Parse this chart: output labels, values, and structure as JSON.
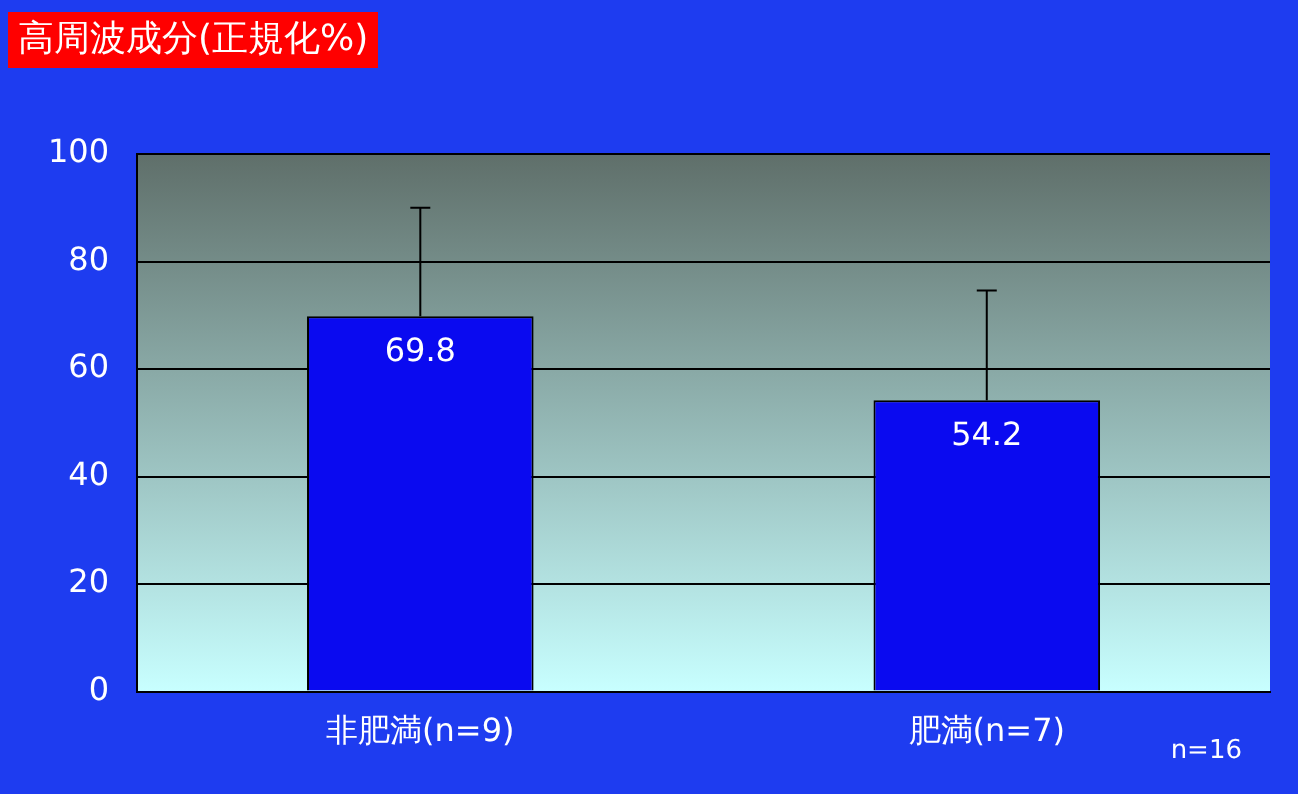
{
  "chart_data": {
    "type": "bar",
    "title": "高周波成分(正規化%)",
    "categories": [
      "非肥満(n=9)",
      "肥満(n=7)"
    ],
    "values": [
      69.8,
      54.2
    ],
    "errors": [
      [
        69.8,
        90
      ],
      [
        54.2,
        74.6
      ]
    ],
    "color": "#0a0af0",
    "ylim": [
      0,
      100
    ],
    "yticks": [
      0,
      20,
      40,
      60,
      80,
      100
    ],
    "grid": "y",
    "legend": false,
    "data_labels": true,
    "annotations": [
      "n=16"
    ]
  }
}
